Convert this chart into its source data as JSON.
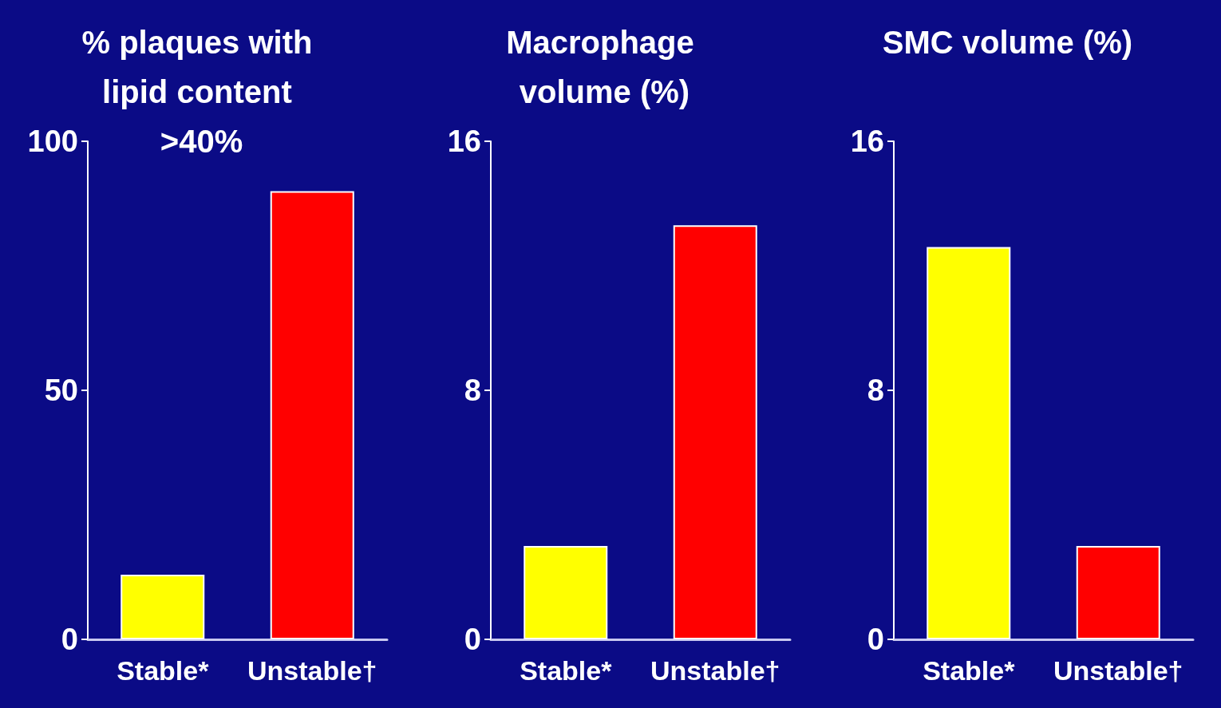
{
  "chart_data": [
    {
      "type": "bar",
      "title": "% plaques with lipid content >40%",
      "categories": [
        "Stable*",
        "Unstable†"
      ],
      "values": [
        13,
        90
      ],
      "colors": [
        "#ffff00",
        "#ff0000"
      ],
      "ylim": [
        0,
        100
      ],
      "yticks": [
        0,
        50,
        100
      ]
    },
    {
      "type": "bar",
      "title": "Macrophage volume (%)",
      "categories": [
        "Stable*",
        "Unstable†"
      ],
      "values": [
        3.0,
        13.3
      ],
      "colors": [
        "#ffff00",
        "#ff0000"
      ],
      "ylim": [
        0,
        16
      ],
      "yticks": [
        0,
        8,
        16
      ]
    },
    {
      "type": "bar",
      "title": "SMC volume (%)",
      "categories": [
        "Stable*",
        "Unstable†"
      ],
      "values": [
        12.6,
        3.0
      ],
      "colors": [
        "#ffff00",
        "#ff0000"
      ],
      "ylim": [
        0,
        16
      ],
      "yticks": [
        0,
        8,
        16
      ]
    }
  ]
}
